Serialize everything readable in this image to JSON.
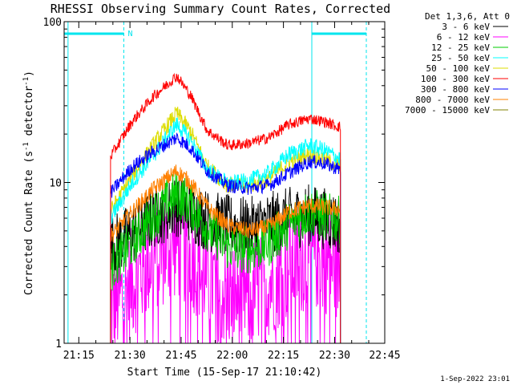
{
  "chart_data": {
    "type": "line",
    "title": "RHESSI Observing Summary Count Rates, Corrected",
    "xlabel": "Start Time (15-Sep-17 21:10:42)",
    "ylabel_main": "Corrected Count Rate (s",
    "ylabel_sup1": "-1",
    "ylabel_mid": " detector",
    "ylabel_sup2": "-1",
    "ylabel_end": ")",
    "x_unit": "minutes since 21:10:42",
    "xlim": [
      0,
      94
    ],
    "ylim": [
      1,
      100
    ],
    "y_scale": "log",
    "x_ticks": [
      {
        "value": 4.3,
        "label": "21:15"
      },
      {
        "value": 19.3,
        "label": "21:30"
      },
      {
        "value": 34.3,
        "label": "21:45"
      },
      {
        "value": 49.3,
        "label": "22:00"
      },
      {
        "value": 64.3,
        "label": "22:15"
      },
      {
        "value": 79.3,
        "label": "22:30"
      },
      {
        "value": 94.3,
        "label": "22:45"
      }
    ],
    "y_ticks": [
      {
        "value": 100,
        "label": "100"
      },
      {
        "value": 10,
        "label": "10"
      },
      {
        "value": 1,
        "label": "1"
      }
    ],
    "legend_header": "Det 1,3,6, Att 0",
    "legend_position": "right",
    "timestamp": "1-Sep-2022 23:01",
    "data_start": 13.6,
    "data_end": 81.0,
    "night_marker": {
      "label": "N",
      "time": 17.5
    },
    "series": [
      {
        "name": "3 - 6 keV",
        "color": "#000000",
        "keypoints": [
          [
            13.6,
            4.0
          ],
          [
            20,
            4.8
          ],
          [
            26,
            6.0
          ],
          [
            33,
            7.2
          ],
          [
            37,
            6.6
          ],
          [
            42,
            5.8
          ],
          [
            48,
            5.4
          ],
          [
            54,
            5.2
          ],
          [
            60,
            5.6
          ],
          [
            66,
            6.0
          ],
          [
            72,
            6.3
          ],
          [
            76,
            6.0
          ],
          [
            81,
            5.5
          ]
        ],
        "spread": 0.45
      },
      {
        "name": "6 - 12 keV",
        "color": "#ff00ff",
        "keypoints": [
          [
            13.6,
            1.6
          ],
          [
            20,
            2.4
          ],
          [
            26,
            3.4
          ],
          [
            33,
            4.2
          ],
          [
            37,
            3.6
          ],
          [
            42,
            2.6
          ],
          [
            48,
            2.0
          ],
          [
            54,
            2.0
          ],
          [
            60,
            2.4
          ],
          [
            66,
            3.0
          ],
          [
            72,
            3.6
          ],
          [
            76,
            3.4
          ],
          [
            81,
            3.0
          ]
        ],
        "spread": 0.8
      },
      {
        "name": "12 - 25 keV",
        "color": "#00cc00",
        "keypoints": [
          [
            13.6,
            2.9
          ],
          [
            20,
            4.2
          ],
          [
            26,
            6.2
          ],
          [
            33,
            8.5
          ],
          [
            37,
            7.4
          ],
          [
            42,
            5.2
          ],
          [
            48,
            4.0
          ],
          [
            54,
            3.8
          ],
          [
            60,
            4.2
          ],
          [
            66,
            5.5
          ],
          [
            72,
            6.6
          ],
          [
            76,
            6.2
          ],
          [
            81,
            5.8
          ]
        ],
        "spread": 0.35
      },
      {
        "name": "25 - 50 keV",
        "color": "#00ffff",
        "keypoints": [
          [
            13.6,
            6.0
          ],
          [
            20,
            10.0
          ],
          [
            26,
            14.5
          ],
          [
            33,
            23.0
          ],
          [
            37,
            18.5
          ],
          [
            42,
            12.0
          ],
          [
            48,
            9.8
          ],
          [
            54,
            10.2
          ],
          [
            60,
            11.5
          ],
          [
            66,
            15.0
          ],
          [
            72,
            17.0
          ],
          [
            76,
            16.0
          ],
          [
            81,
            14.0
          ]
        ],
        "spread": 0.12
      },
      {
        "name": "50 - 100 keV",
        "color": "#dddd00",
        "keypoints": [
          [
            13.6,
            6.6
          ],
          [
            20,
            11.0
          ],
          [
            26,
            17.0
          ],
          [
            33,
            27.0
          ],
          [
            37,
            21.0
          ],
          [
            42,
            12.5
          ],
          [
            48,
            9.6
          ],
          [
            54,
            9.5
          ],
          [
            60,
            10.5
          ],
          [
            66,
            13.5
          ],
          [
            72,
            15.0
          ],
          [
            76,
            14.0
          ],
          [
            81,
            12.5
          ]
        ],
        "spread": 0.12
      },
      {
        "name": "100 - 300 keV",
        "color": "#ff0000",
        "keypoints": [
          [
            13.6,
            14.5
          ],
          [
            20,
            24.0
          ],
          [
            26,
            34.0
          ],
          [
            33,
            46.0
          ],
          [
            37,
            35.0
          ],
          [
            42,
            21.0
          ],
          [
            48,
            17.0
          ],
          [
            54,
            17.5
          ],
          [
            60,
            19.0
          ],
          [
            66,
            23.0
          ],
          [
            72,
            25.0
          ],
          [
            76,
            24.0
          ],
          [
            81,
            22.0
          ]
        ],
        "spread": 0.08
      },
      {
        "name": "300 - 800 keV",
        "color": "#0000ff",
        "keypoints": [
          [
            13.6,
            8.6
          ],
          [
            20,
            12.5
          ],
          [
            26,
            15.5
          ],
          [
            33,
            19.0
          ],
          [
            37,
            16.5
          ],
          [
            42,
            11.8
          ],
          [
            48,
            9.6
          ],
          [
            54,
            9.2
          ],
          [
            60,
            9.6
          ],
          [
            66,
            11.5
          ],
          [
            72,
            13.5
          ],
          [
            76,
            13.2
          ],
          [
            81,
            12.0
          ]
        ],
        "spread": 0.1
      },
      {
        "name": "800 - 7000 keV",
        "color": "#ff8000",
        "keypoints": [
          [
            13.6,
            4.6
          ],
          [
            20,
            6.6
          ],
          [
            26,
            9.0
          ],
          [
            33,
            11.8
          ],
          [
            37,
            10.0
          ],
          [
            42,
            7.0
          ],
          [
            48,
            5.4
          ],
          [
            54,
            5.0
          ],
          [
            60,
            5.3
          ],
          [
            66,
            6.6
          ],
          [
            72,
            7.2
          ],
          [
            76,
            7.0
          ],
          [
            81,
            6.8
          ]
        ],
        "spread": 0.12
      },
      {
        "name": "7000 - 15000 keV",
        "color": "#808000",
        "keypoints": [],
        "spread": 0
      }
    ]
  },
  "colors": {
    "axis": "#000000",
    "marker": "#00e5ee",
    "background": "#ffffff"
  }
}
